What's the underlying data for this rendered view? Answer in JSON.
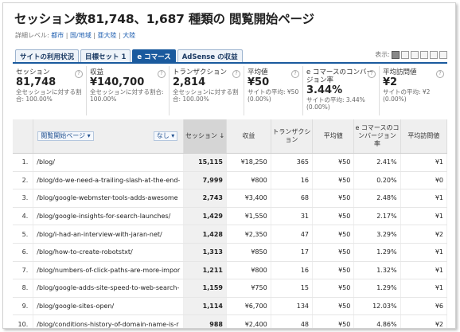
{
  "title": "セッション数81,748、1,687 種類の 閲覧開始ページ",
  "detail": {
    "label": "詳細レベル:",
    "links": [
      "都市",
      "国/地域",
      "亜大陸",
      "大陸"
    ]
  },
  "tabs": [
    "サイトの利用状況",
    "目標セット 1",
    "e コマース",
    "AdSense の収益"
  ],
  "active_tab": 2,
  "view_label": "表示:",
  "metrics": [
    {
      "label": "セッション",
      "value": "81,748",
      "sub": "全セッションに対する割合: 100.00%"
    },
    {
      "label": "収益",
      "value": "¥140,700",
      "sub": "全セッションに対する割合: 100.00%"
    },
    {
      "label": "トランザクション",
      "value": "2,814",
      "sub": "全セッションに対する割合: 100.00%"
    },
    {
      "label": "平均値",
      "value": "¥50",
      "sub": "サイトの平均: ¥50 (0.00%)"
    },
    {
      "label": "e コマースのコンバージョン率",
      "value": "3.44%",
      "sub": "サイトの平均: 3.44% (0.00%)"
    },
    {
      "label": "平均訪問値",
      "value": "¥2",
      "sub": "サイトの平均: ¥2 (0.00%)"
    }
  ],
  "table": {
    "dim1": "閲覧開始ページ",
    "dim2": "なし",
    "headers": [
      "セッション ↓",
      "収益",
      "トランザクション",
      "平均値",
      "e コマースのコンバージョン率",
      "平均訪問値"
    ],
    "rows": [
      {
        "idx": "1.",
        "page": "/blog/",
        "sessions": "15,115",
        "revenue": "¥18,250",
        "trans": "365",
        "avg": "¥50",
        "conv": "2.41%",
        "visit": "¥1"
      },
      {
        "idx": "2.",
        "page": "/blog/do-we-need-a-trailing-slash-at-the-end-",
        "sessions": "7,999",
        "revenue": "¥800",
        "trans": "16",
        "avg": "¥50",
        "conv": "0.20%",
        "visit": "¥0"
      },
      {
        "idx": "3.",
        "page": "/blog/google-webmster-tools-adds-awesome",
        "sessions": "2,743",
        "revenue": "¥3,400",
        "trans": "68",
        "avg": "¥50",
        "conv": "2.48%",
        "visit": "¥1"
      },
      {
        "idx": "4.",
        "page": "/blog/google-insights-for-search-launches/",
        "sessions": "1,429",
        "revenue": "¥1,550",
        "trans": "31",
        "avg": "¥50",
        "conv": "2.17%",
        "visit": "¥1"
      },
      {
        "idx": "5.",
        "page": "/blog/i-had-an-interview-with-jaran-net/",
        "sessions": "1,428",
        "revenue": "¥2,350",
        "trans": "47",
        "avg": "¥50",
        "conv": "3.29%",
        "visit": "¥2"
      },
      {
        "idx": "6.",
        "page": "/blog/how-to-create-robotstxt/",
        "sessions": "1,313",
        "revenue": "¥850",
        "trans": "17",
        "avg": "¥50",
        "conv": "1.29%",
        "visit": "¥1"
      },
      {
        "idx": "7.",
        "page": "/blog/numbers-of-click-paths-are-more-impor",
        "sessions": "1,211",
        "revenue": "¥800",
        "trans": "16",
        "avg": "¥50",
        "conv": "1.32%",
        "visit": "¥1"
      },
      {
        "idx": "8.",
        "page": "/blog/google-adds-site-speed-to-web-search-",
        "sessions": "1,159",
        "revenue": "¥750",
        "trans": "15",
        "avg": "¥50",
        "conv": "1.29%",
        "visit": "¥1"
      },
      {
        "idx": "9.",
        "page": "/blog/google-sites-open/",
        "sessions": "1,114",
        "revenue": "¥6,700",
        "trans": "134",
        "avg": "¥50",
        "conv": "12.03%",
        "visit": "¥6"
      },
      {
        "idx": "10.",
        "page": "/blog/conditions-history-of-domain-name-is-r",
        "sessions": "988",
        "revenue": "¥2,400",
        "trans": "48",
        "avg": "¥50",
        "conv": "4.86%",
        "visit": "¥2"
      }
    ]
  }
}
